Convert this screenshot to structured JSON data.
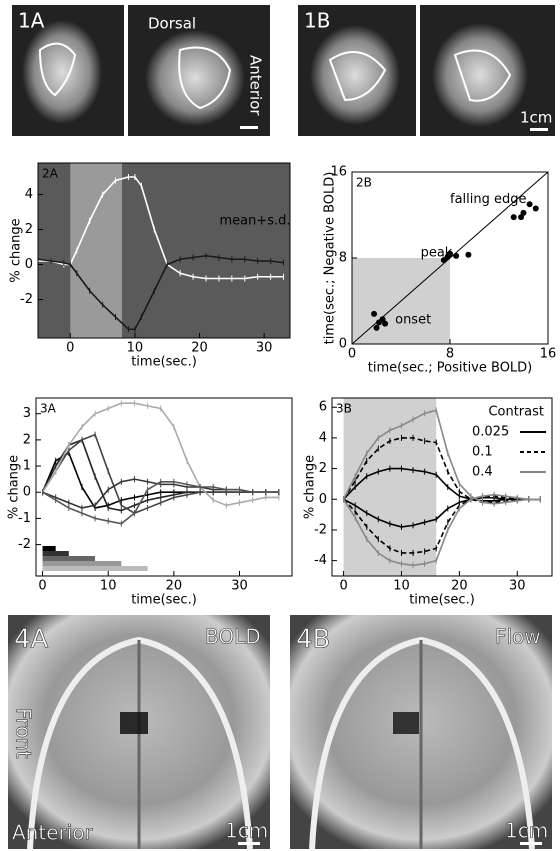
{
  "panel1": {
    "label_a": "1A",
    "dorsal": "Dorsal",
    "anterior": "Anterior",
    "label_b": "1B",
    "scale": "1cm"
  },
  "panel4": {
    "label_a": "4A",
    "bold": "BOLD",
    "front": "Front",
    "anterior": "Anterior",
    "scale_a": "1cm",
    "label_b": "4B",
    "flow": "Flow",
    "scale_b": "1cm"
  },
  "chart_data": [
    {
      "type": "line",
      "panel_label": "2A",
      "annotations": [
        "mean+s.d."
      ],
      "xlabel": "time(sec.)",
      "ylabel": "% change",
      "x": [
        -5,
        -3,
        -1,
        0,
        1,
        3,
        5,
        7,
        9,
        10,
        11,
        13,
        15,
        17,
        19,
        21,
        23,
        25,
        27,
        29,
        31,
        33
      ],
      "xlim": [
        -5,
        34
      ],
      "xticks": [
        0,
        10,
        20,
        30
      ],
      "ylim": [
        -4.2,
        5.8
      ],
      "yticks": [
        -2,
        0,
        2,
        4
      ],
      "shaded_x": [
        0,
        8
      ],
      "background": "#5a5a5a",
      "series": [
        {
          "color": "#ffffff",
          "values": [
            0.2,
            0.2,
            0,
            0,
            0.8,
            2.5,
            4,
            4.8,
            5,
            5,
            4.5,
            2,
            0,
            -0.5,
            -0.7,
            -0.8,
            -0.8,
            -0.8,
            -0.8,
            -0.7,
            -0.7,
            -0.7
          ]
        },
        {
          "color": "#1a1a1a",
          "values": [
            0.3,
            0.2,
            0.1,
            0,
            -0.5,
            -1.5,
            -2.3,
            -3,
            -3.7,
            -3.7,
            -3,
            -1.5,
            0,
            0.3,
            0.4,
            0.5,
            0.4,
            0.3,
            0.3,
            0.2,
            0.2,
            0.1
          ]
        }
      ]
    },
    {
      "type": "scatter",
      "panel_label": "2B",
      "annotations": [
        "onset",
        "peak",
        "falling edge"
      ],
      "xlabel": "time(sec.; Positive BOLD)",
      "ylabel": "time(sec.; Negative BOLD)",
      "x": [
        1.8,
        2.2,
        2.0,
        2.5,
        2.7,
        7.5,
        8.0,
        8.5,
        9.5,
        7.8,
        13.2,
        14.0,
        14.5,
        13.8,
        15.0
      ],
      "values": [
        2.8,
        2.0,
        1.5,
        2.3,
        1.9,
        7.8,
        8.4,
        8.2,
        8.3,
        8.1,
        11.8,
        12.2,
        13.0,
        11.8,
        12.6
      ],
      "xlim": [
        0,
        16
      ],
      "xticks": [
        0,
        8,
        16
      ],
      "ylim": [
        0,
        16
      ],
      "yticks": [
        0,
        8,
        16
      ],
      "shaded_x": [
        0,
        8
      ],
      "shaded_y": [
        0,
        8
      ],
      "color": "#000000"
    },
    {
      "type": "line",
      "panel_label": "3A",
      "xlabel": "time(sec.)",
      "ylabel": "% change",
      "x": [
        0,
        2,
        4,
        6,
        8,
        10,
        12,
        14,
        16,
        18,
        20,
        22,
        24,
        26,
        28,
        30,
        32,
        34,
        36
      ],
      "xlim": [
        -1,
        38
      ],
      "xticks": [
        0,
        10,
        20,
        30
      ],
      "ylim": [
        -3.2,
        3.6
      ],
      "yticks": [
        -2,
        -1,
        0,
        1,
        2,
        3
      ],
      "stimulus_durations": [
        2,
        4,
        8,
        12,
        16
      ],
      "series": [
        {
          "color": "#000000",
          "values": [
            0,
            1.2,
            1.5,
            0.2,
            -0.6,
            -0.5,
            -0.3,
            -0.2,
            -0.1,
            0,
            0,
            0,
            0,
            0,
            0,
            0,
            0,
            0,
            0
          ]
        },
        {
          "color": "#222222",
          "values": [
            0,
            1.0,
            1.8,
            2.0,
            0.6,
            -0.6,
            -0.7,
            -0.5,
            -0.3,
            -0.2,
            -0.1,
            0,
            0,
            0,
            0,
            0,
            0,
            0,
            0
          ]
        },
        {
          "color": "#444444",
          "values": [
            0,
            0.8,
            1.6,
            2.0,
            2.2,
            0.8,
            -0.5,
            -0.8,
            -0.6,
            -0.4,
            -0.2,
            -0.1,
            0,
            0,
            0,
            0,
            0,
            0,
            0
          ]
        },
        {
          "color": "#aaaaaa",
          "values": [
            0,
            0.8,
            1.8,
            2.5,
            3.0,
            3.2,
            3.4,
            3.4,
            3.3,
            3.2,
            2.5,
            1.2,
            0.2,
            -0.3,
            -0.5,
            -0.4,
            -0.3,
            -0.2,
            -0.2
          ]
        },
        {
          "color": "#333333",
          "values": [
            0,
            -0.2,
            -0.4,
            -0.6,
            -0.5,
            0.1,
            0.4,
            0.5,
            0.4,
            0.3,
            0.3,
            0.2,
            0.2,
            0.1,
            0.1,
            0.1,
            0,
            0,
            0
          ]
        },
        {
          "color": "#555555",
          "values": [
            0,
            -0.3,
            -0.6,
            -0.8,
            -1.0,
            -1.1,
            -1.2,
            -0.8,
            0.1,
            0.4,
            0.4,
            0.3,
            0.2,
            0.2,
            0.1,
            0.1,
            0,
            0,
            0
          ]
        }
      ]
    },
    {
      "type": "line",
      "panel_label": "3B",
      "xlabel": "time(sec.)",
      "ylabel": "% change",
      "legend_title": "Contrast",
      "x": [
        0,
        2,
        4,
        6,
        8,
        10,
        12,
        14,
        16,
        18,
        20,
        22,
        24,
        26,
        28,
        30,
        32,
        34
      ],
      "xlim": [
        -2,
        36
      ],
      "xticks": [
        0,
        10,
        20,
        30
      ],
      "ylim": [
        -5,
        6.6
      ],
      "yticks": [
        -4,
        -2,
        0,
        2,
        4,
        6
      ],
      "shaded_x": [
        0,
        16
      ],
      "series": [
        {
          "name": "0.025",
          "color": "#000000",
          "dash": "solid",
          "values": [
            0,
            0.8,
            1.5,
            1.8,
            2.0,
            2.0,
            1.9,
            1.8,
            1.6,
            0.8,
            0.2,
            0,
            -0.1,
            -0.1,
            0,
            0,
            0,
            0
          ],
          "values_neg": [
            0,
            -0.4,
            -0.9,
            -1.3,
            -1.6,
            -1.8,
            -1.7,
            -1.5,
            -1.3,
            -0.6,
            -0.2,
            0,
            0.1,
            0.1,
            0,
            0,
            0,
            0
          ]
        },
        {
          "name": "0.1",
          "color": "#000000",
          "dash": "dashed",
          "values": [
            0,
            1.2,
            2.5,
            3.3,
            3.8,
            4.0,
            4.0,
            3.8,
            3.7,
            1.8,
            0.5,
            0,
            -0.2,
            -0.2,
            -0.1,
            0,
            0,
            0
          ],
          "values_neg": [
            0,
            -0.8,
            -1.8,
            -2.6,
            -3.2,
            -3.5,
            -3.5,
            -3.4,
            -3.2,
            -1.5,
            -0.4,
            0,
            0.2,
            0.2,
            0.1,
            0,
            0,
            0
          ]
        },
        {
          "name": "0.4",
          "color": "#888888",
          "dash": "solid",
          "values": [
            0,
            1.5,
            3.0,
            4.0,
            4.5,
            4.8,
            5.2,
            5.6,
            5.8,
            3.0,
            1.0,
            0.2,
            -0.2,
            -0.3,
            -0.2,
            -0.1,
            0,
            0
          ],
          "values_neg": [
            0,
            -1.2,
            -2.6,
            -3.5,
            -4.0,
            -4.2,
            -4.3,
            -4.2,
            -4.0,
            -2.0,
            -0.6,
            0,
            0.2,
            0.3,
            0.2,
            0.1,
            0,
            0
          ]
        }
      ]
    }
  ]
}
